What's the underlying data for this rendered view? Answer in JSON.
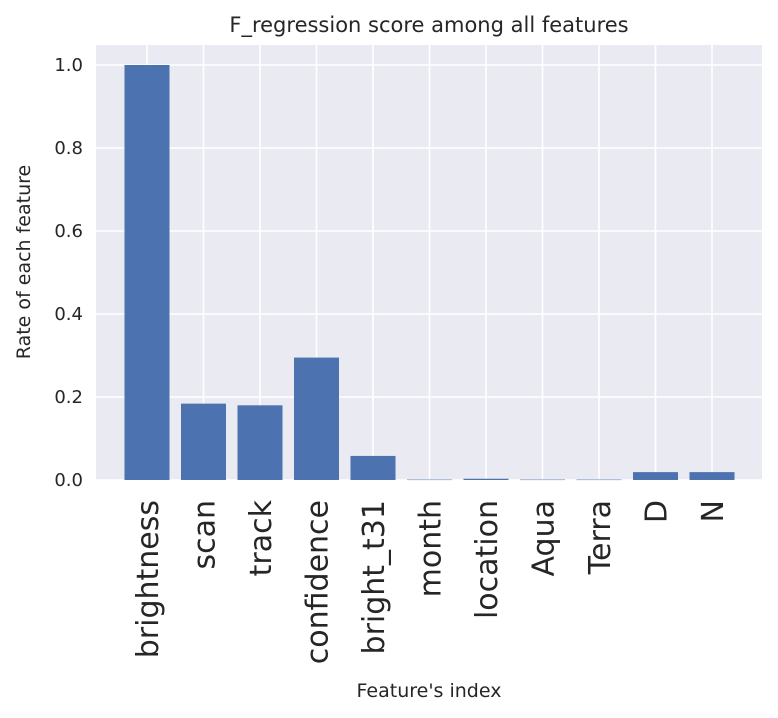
{
  "chart_data": {
    "type": "bar",
    "title": "F_regression score among all features",
    "xlabel": "Feature's index",
    "ylabel": "Rate of each feature",
    "categories": [
      "brightness",
      "scan",
      "track",
      "confidence",
      "bright_t31",
      "month",
      "location",
      "Aqua",
      "Terra",
      "D",
      "N"
    ],
    "values": [
      1.0,
      0.184,
      0.18,
      0.295,
      0.058,
      0.001,
      0.003,
      0.001,
      0.001,
      0.019,
      0.019
    ],
    "ylim": [
      0,
      1.05
    ],
    "yticks": [
      "0.0",
      "0.2",
      "0.4",
      "0.6",
      "0.8",
      "1.0"
    ],
    "grid": true,
    "colors": {
      "bar": "#4c72b0",
      "background": "#eaeaf2",
      "grid": "#ffffff"
    }
  }
}
